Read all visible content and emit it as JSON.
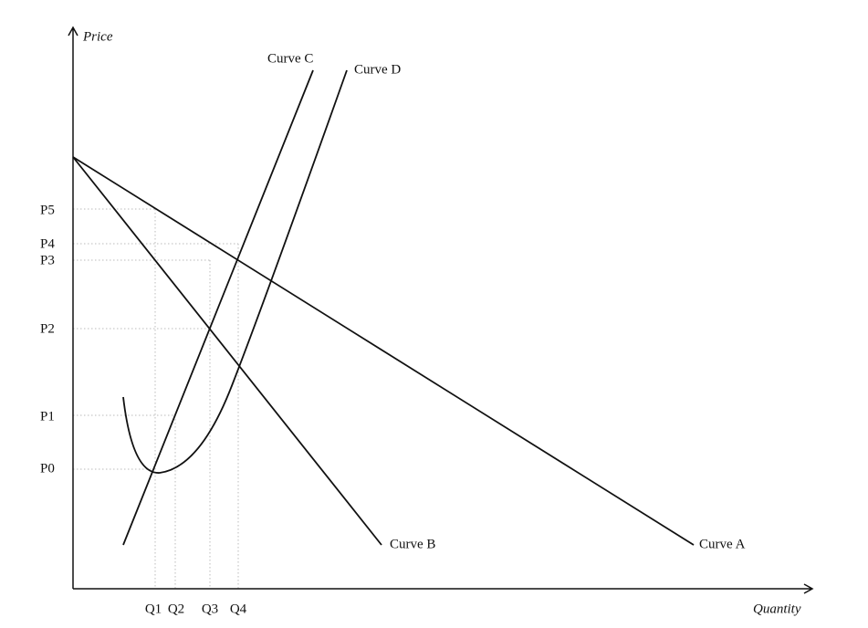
{
  "axes": {
    "y_label": "Price",
    "x_label": "Quantity"
  },
  "price_levels": [
    "P0",
    "P1",
    "P2",
    "P3",
    "P4",
    "P5"
  ],
  "quantity_levels": [
    "Q1",
    "Q2",
    "Q3",
    "Q4"
  ],
  "curves": [
    "Curve A",
    "Curve B",
    "Curve C",
    "Curve D"
  ]
}
